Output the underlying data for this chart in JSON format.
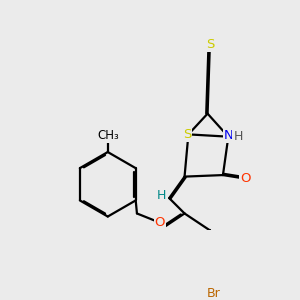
{
  "background_color": "#ebebeb",
  "atom_colors": {
    "S": "#cccc00",
    "N": "#0000ee",
    "O": "#ff3300",
    "Br": "#bb6600",
    "C": "#000000",
    "H": "#008888"
  },
  "bond_color": "#000000",
  "bond_width": 1.6,
  "figsize": [
    3.0,
    3.0
  ],
  "dpi": 100
}
